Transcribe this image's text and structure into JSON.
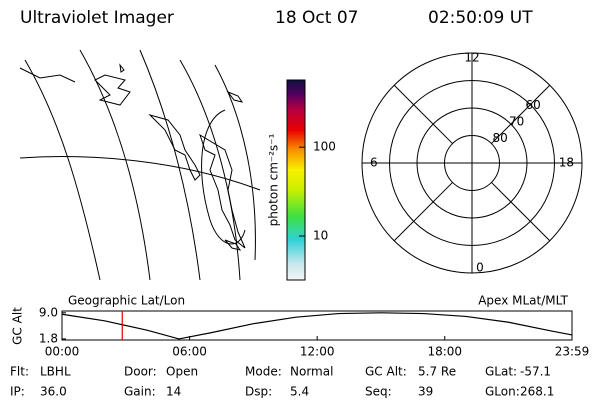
{
  "header": {
    "title": "Ultraviolet Imager",
    "date": "18 Oct 07",
    "time": "02:50:09 UT"
  },
  "colorbar": {
    "label": "photon cm⁻²s⁻¹",
    "log": true,
    "clim": [
      3.2,
      570
    ],
    "ticks": [
      10,
      100
    ]
  },
  "polar": {
    "rlim": [
      90,
      50
    ],
    "lat_rings": [
      80,
      70,
      60
    ],
    "mlt_ticks": [
      12,
      18,
      6,
      0
    ]
  },
  "chart_data": {
    "type": "line",
    "left_label": "Geographic Lat/Lon",
    "right_label": "Apex MLat/MLT",
    "ylabel": "GC Alt",
    "xlim": [
      0,
      1439
    ],
    "ylim": [
      1.5,
      9.5
    ],
    "xticks": [
      {
        "value": 0,
        "label": "00:00"
      },
      {
        "value": 360,
        "label": "06:00"
      },
      {
        "value": 720,
        "label": "12:00"
      },
      {
        "value": 1080,
        "label": "18:00"
      },
      {
        "value": 1439,
        "label": "23:59"
      }
    ],
    "yticks": [
      {
        "value": 9,
        "label": "9.0"
      },
      1.8
    ],
    "marker_time": 170,
    "marker_color": "#e00000",
    "series": [
      {
        "color": "#000000",
        "x": [
          0,
          120,
          240,
          330,
          420,
          540,
          660,
          780,
          900,
          1020,
          1140,
          1260,
          1380,
          1439
        ],
        "values": [
          8.6,
          6.8,
          4.2,
          1.8,
          3.5,
          6.0,
          7.8,
          8.8,
          9.0,
          8.8,
          8.0,
          6.4,
          4.0,
          2.9
        ]
      }
    ]
  },
  "footer": {
    "rows": [
      [
        {
          "label": "Flt:",
          "value": "LBHL"
        },
        {
          "label": "Door:",
          "value": "Open"
        },
        {
          "label": "Mode:",
          "value": "Normal"
        },
        {
          "label": "GC Alt:",
          "value": "5.7 Re"
        },
        {
          "label": "GLat:",
          "value": "-57.1"
        }
      ],
      [
        {
          "label": "IP:",
          "value": "36.0"
        },
        {
          "label": "Gain:",
          "value": "14"
        },
        {
          "label": "Dsp:",
          "value": "5.4"
        },
        {
          "label": "Seq:",
          "value": "39"
        },
        {
          "label": "GLon:",
          "value": "268.1"
        }
      ]
    ]
  }
}
